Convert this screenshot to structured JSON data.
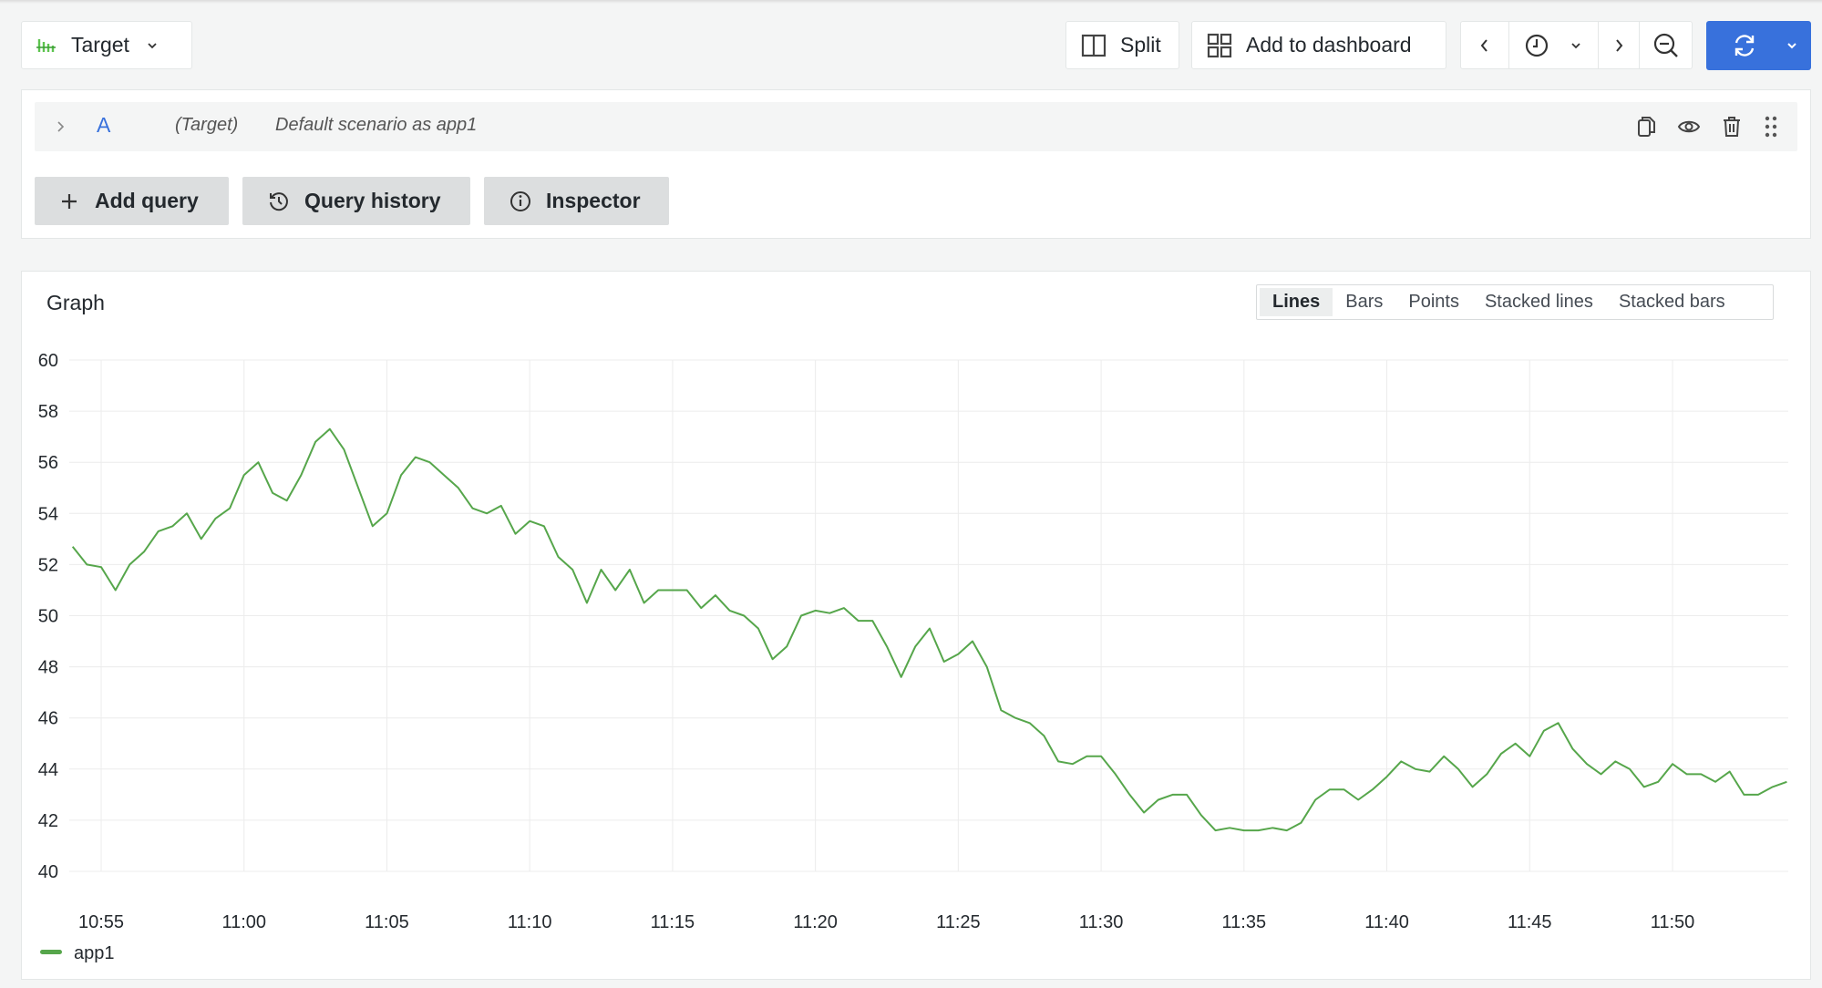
{
  "toolbar": {
    "datasource_label": "Target",
    "split_label": "Split",
    "add_to_dashboard_label": "Add to dashboard",
    "refresh_color": "#3871dc"
  },
  "query": {
    "ref_id": "A",
    "datasource": "(Target)",
    "description": "Default scenario as app1",
    "add_query_label": "Add query",
    "query_history_label": "Query history",
    "inspector_label": "Inspector"
  },
  "graph": {
    "title": "Graph",
    "modes": [
      "Lines",
      "Bars",
      "Points",
      "Stacked lines",
      "Stacked bars"
    ],
    "active_mode": "Lines"
  },
  "chart_data": {
    "type": "line",
    "xlabel": "",
    "ylabel": "",
    "ylim": [
      40,
      60
    ],
    "yticks": [
      "40",
      "42",
      "44",
      "46",
      "48",
      "50",
      "52",
      "54",
      "56",
      "58",
      "60"
    ],
    "xticks": [
      "10:55",
      "11:00",
      "11:05",
      "11:10",
      "11:15",
      "11:20",
      "11:25",
      "11:30",
      "11:35",
      "11:40",
      "11:45",
      "11:50"
    ],
    "xlim": [
      "10:54:00",
      "11:54:00"
    ],
    "grid": true,
    "legend_position": "bottom-left",
    "series": [
      {
        "name": "app1",
        "color": "#56a64b",
        "x": [
          "10:54:00",
          "10:54:30",
          "10:55:00",
          "10:55:30",
          "10:56:00",
          "10:56:30",
          "10:57:00",
          "10:57:30",
          "10:58:00",
          "10:58:30",
          "10:59:00",
          "10:59:30",
          "11:00:00",
          "11:00:30",
          "11:01:00",
          "11:01:30",
          "11:02:00",
          "11:02:30",
          "11:03:00",
          "11:03:30",
          "11:04:00",
          "11:04:30",
          "11:05:00",
          "11:05:30",
          "11:06:00",
          "11:06:30",
          "11:07:00",
          "11:07:30",
          "11:08:00",
          "11:08:30",
          "11:09:00",
          "11:09:30",
          "11:10:00",
          "11:10:30",
          "11:11:00",
          "11:11:30",
          "11:12:00",
          "11:12:30",
          "11:13:00",
          "11:13:30",
          "11:14:00",
          "11:14:30",
          "11:15:00",
          "11:15:30",
          "11:16:00",
          "11:16:30",
          "11:17:00",
          "11:17:30",
          "11:18:00",
          "11:18:30",
          "11:19:00",
          "11:19:30",
          "11:20:00",
          "11:20:30",
          "11:21:00",
          "11:21:30",
          "11:22:00",
          "11:22:30",
          "11:23:00",
          "11:23:30",
          "11:24:00",
          "11:24:30",
          "11:25:00",
          "11:25:30",
          "11:26:00",
          "11:26:30",
          "11:27:00",
          "11:27:30",
          "11:28:00",
          "11:28:30",
          "11:29:00",
          "11:29:30",
          "11:30:00",
          "11:30:30",
          "11:31:00",
          "11:31:30",
          "11:32:00",
          "11:32:30",
          "11:33:00",
          "11:33:30",
          "11:34:00",
          "11:34:30",
          "11:35:00",
          "11:35:30",
          "11:36:00",
          "11:36:30",
          "11:37:00",
          "11:37:30",
          "11:38:00",
          "11:38:30",
          "11:39:00",
          "11:39:30",
          "11:40:00",
          "11:40:30",
          "11:41:00",
          "11:41:30",
          "11:42:00",
          "11:42:30",
          "11:43:00",
          "11:43:30",
          "11:44:00",
          "11:44:30",
          "11:45:00",
          "11:45:30",
          "11:46:00",
          "11:46:30",
          "11:47:00",
          "11:47:30",
          "11:48:00",
          "11:48:30",
          "11:49:00",
          "11:49:30",
          "11:50:00",
          "11:50:30",
          "11:51:00",
          "11:51:30",
          "11:52:00",
          "11:52:30",
          "11:53:00",
          "11:53:30",
          "11:54:00"
        ],
        "values": [
          52.7,
          52.0,
          51.9,
          51.0,
          52.0,
          52.5,
          53.3,
          53.5,
          54.0,
          53.0,
          53.8,
          54.2,
          55.5,
          56.0,
          54.8,
          54.5,
          55.5,
          56.8,
          57.3,
          56.5,
          55.0,
          53.5,
          54.0,
          55.5,
          56.2,
          56.0,
          55.5,
          55.0,
          54.2,
          54.0,
          54.3,
          53.2,
          53.7,
          53.5,
          52.3,
          51.8,
          50.5,
          51.8,
          51.0,
          51.8,
          50.5,
          51.0,
          51.0,
          51.0,
          50.3,
          50.8,
          50.2,
          50.0,
          49.5,
          48.3,
          48.8,
          50.0,
          50.2,
          50.1,
          50.3,
          49.8,
          49.8,
          48.8,
          47.6,
          48.8,
          49.5,
          48.2,
          48.5,
          49.0,
          48.0,
          46.3,
          46.0,
          45.8,
          45.3,
          44.3,
          44.2,
          44.5,
          44.5,
          43.8,
          43.0,
          42.3,
          42.8,
          43.0,
          43.0,
          42.2,
          41.6,
          41.7,
          41.6,
          41.6,
          41.7,
          41.6,
          41.9,
          42.8,
          43.2,
          43.2,
          42.8,
          43.2,
          43.7,
          44.3,
          44.0,
          43.9,
          44.5,
          44.0,
          43.3,
          43.8,
          44.6,
          45.0,
          44.5,
          45.5,
          45.8,
          44.8,
          44.2,
          43.8,
          44.3,
          44.0,
          43.3,
          43.5,
          44.2,
          43.8,
          43.8,
          43.5,
          43.9,
          43.0,
          43.0,
          43.3,
          43.5
        ]
      }
    ]
  }
}
